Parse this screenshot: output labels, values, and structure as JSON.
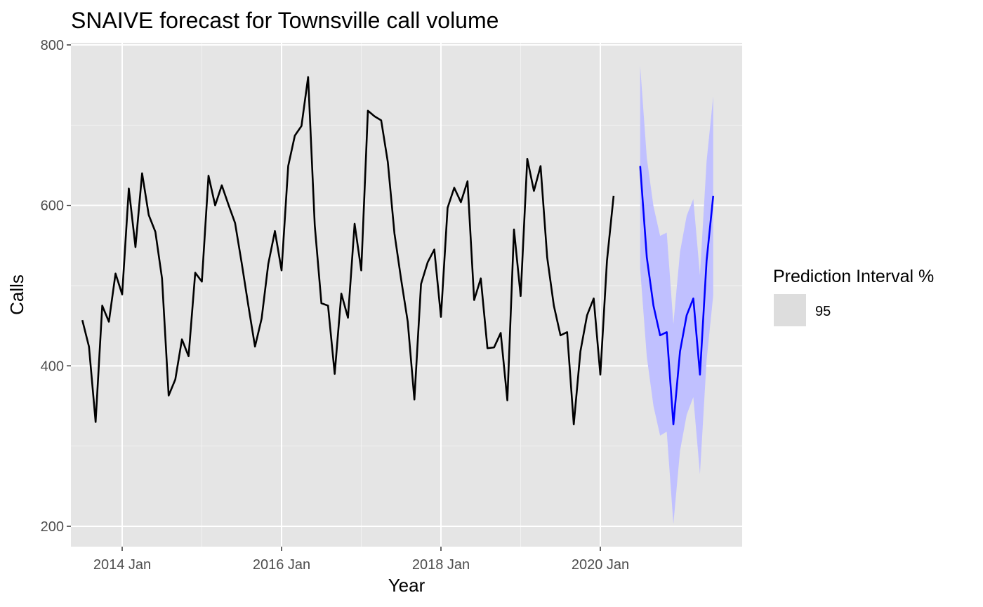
{
  "chart_data": {
    "type": "line",
    "title": "SNAIVE forecast for Townsville call volume",
    "xlabel": "Year",
    "ylabel": "Calls",
    "x_unit": "month",
    "x_range": [
      "2013-01",
      "2021-07"
    ],
    "ylim": [
      175,
      800
    ],
    "y_ticks": [
      200,
      400,
      600,
      800
    ],
    "x_ticks": [
      {
        "date": "2014-01",
        "label": "2014 Jan"
      },
      {
        "date": "2016-01",
        "label": "2016 Jan"
      },
      {
        "date": "2018-01",
        "label": "2018 Jan"
      },
      {
        "date": "2020-01",
        "label": "2020 Jan"
      }
    ],
    "grid": true,
    "background_color": "#e5e5e5",
    "series": [
      {
        "color": "#000000",
        "start": "2013-07",
        "values": [
          457,
          424,
          330,
          475,
          455,
          515,
          489,
          621,
          548,
          640,
          588,
          567,
          509,
          363,
          383,
          433,
          412,
          516,
          505,
          637,
          600,
          625,
          601,
          578,
          528,
          475,
          424,
          459,
          527,
          568,
          519,
          649,
          687,
          699,
          760,
          575,
          478,
          475,
          390,
          490,
          460,
          577,
          519,
          718,
          711,
          706,
          654,
          565,
          508,
          455,
          358,
          502,
          529,
          545,
          461,
          597,
          622,
          604,
          630,
          482,
          509,
          422,
          423,
          441,
          357,
          570,
          487,
          658,
          618,
          649,
          535,
          475,
          438,
          442,
          327,
          418,
          463,
          484,
          389,
          531,
          612
        ]
      },
      {
        "color": "#0000ff",
        "start": "2020-07",
        "values": [
          649,
          535,
          475,
          438,
          442,
          327,
          418,
          463,
          484,
          389,
          531,
          612
        ]
      }
    ],
    "interval": {
      "level": "95",
      "color": "#c0c0ff",
      "start": "2020-07",
      "lower": [
        521,
        411,
        350,
        313,
        318,
        203,
        294,
        339,
        361,
        265,
        407,
        488
      ],
      "upper": [
        774,
        659,
        599,
        562,
        566,
        452,
        542,
        587,
        608,
        513,
        655,
        736
      ]
    },
    "legend": {
      "title": "Prediction Interval %",
      "entries": [
        {
          "label": "95",
          "color": "#dddddd"
        }
      ],
      "position": "right"
    }
  }
}
